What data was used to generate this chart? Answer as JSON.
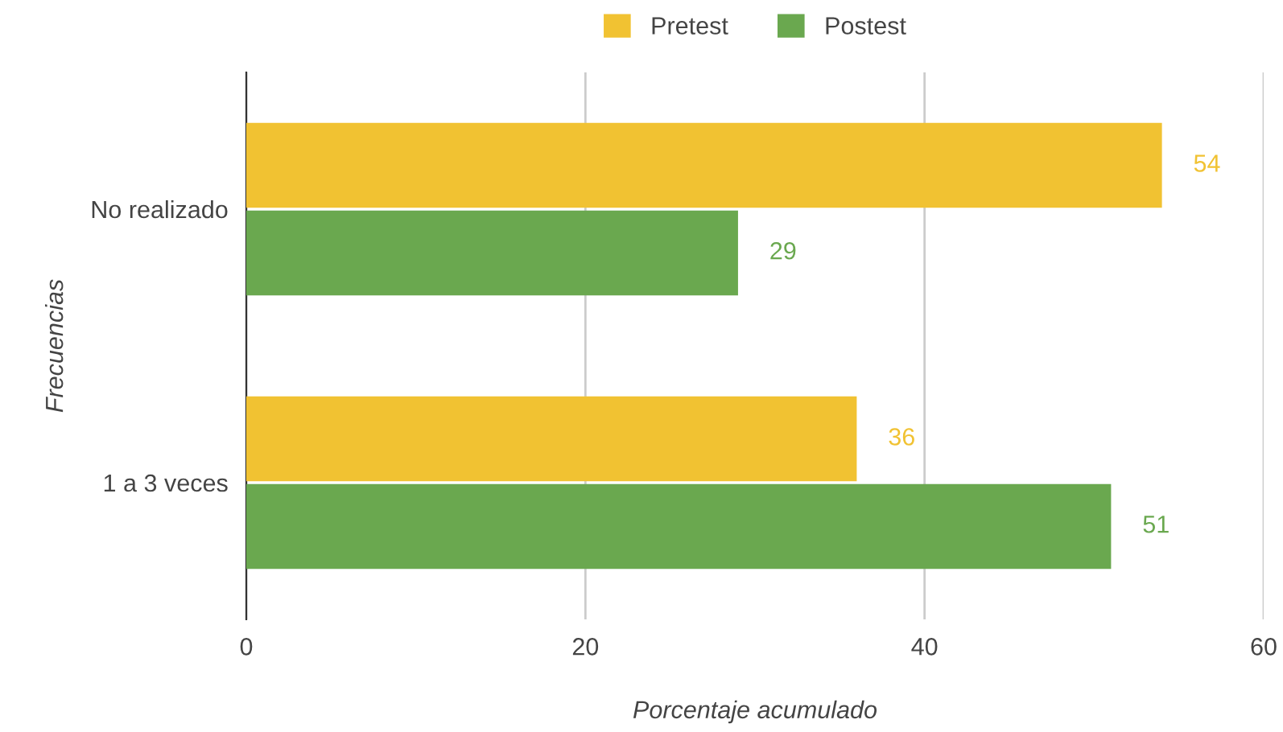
{
  "chart_data": {
    "type": "bar",
    "orientation": "horizontal",
    "xlabel": "Porcentaje acumulado",
    "ylabel": "Frecuencias",
    "categories": [
      "No realizado",
      "1 a 3 veces"
    ],
    "series": [
      {
        "name": "Pretest",
        "color": "#f1c232",
        "values": [
          54,
          36
        ]
      },
      {
        "name": "Postest",
        "color": "#6aa84f",
        "values": [
          29,
          51
        ]
      }
    ],
    "xlim": [
      0,
      60
    ],
    "xticks": [
      0,
      20,
      40,
      60
    ],
    "grid": "x",
    "legend": "top",
    "data_labels": true
  }
}
